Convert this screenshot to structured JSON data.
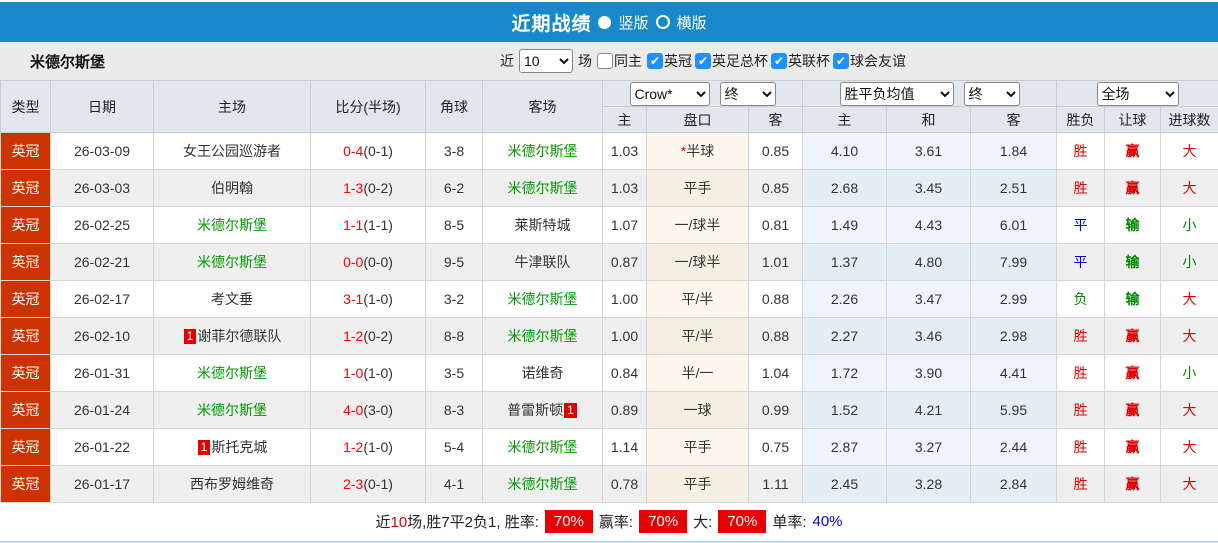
{
  "colors": {
    "titlebar_blue": "#1789cb",
    "league_cell_red": "#cc3300",
    "checkbox_blue": "#1e90ff",
    "row_alt_gray": "#efefef",
    "avg_col_blue": "#edf5fa",
    "handicap_col_cream": "#fcf8ee",
    "win_red": "#e00000",
    "lose_green": "#008800",
    "draw_blue": "#0000dd",
    "team_green": "#009900",
    "rate_badge_red": "#e80000"
  },
  "titlebar": {
    "title": "近期战绩",
    "vertical_label": "竖版",
    "horizontal_label": "横版"
  },
  "filter": {
    "team": "米德尔斯堡",
    "near_label": "近",
    "near_value": "10",
    "unit_label": "场",
    "same_home_label": "同主",
    "leagues": [
      "英冠",
      "英足总杯",
      "英联杯",
      "球会友谊"
    ]
  },
  "table": {
    "main_headers": [
      "类型",
      "日期",
      "主场",
      "比分(半场)",
      "角球",
      "客场"
    ],
    "selects": {
      "crow": "Crow*",
      "crow_final": "终",
      "avg": "胜平负均值",
      "avg_final": "终",
      "full": "全场"
    },
    "sub_headers": [
      "主",
      "盘口",
      "客",
      "主",
      "和",
      "客",
      "胜负",
      "让球",
      "进球数"
    ],
    "rows": [
      {
        "league": "英冠",
        "date": "26-03-09",
        "home": {
          "name": "女王公园巡游者",
          "green": false,
          "badge": "",
          "badge_after": false
        },
        "score": "0-4",
        "half": "(0-1)",
        "corners": "3-8",
        "away": {
          "name": "米德尔斯堡",
          "green": true,
          "badge": "",
          "badge_after": false
        },
        "odds": [
          "1.03",
          "半球",
          "0.85"
        ],
        "star": true,
        "avg": [
          "4.10",
          "3.61",
          "1.84"
        ],
        "result": [
          "胜",
          "red"
        ],
        "let": [
          "赢",
          "red"
        ],
        "goal": [
          "大",
          "red"
        ]
      },
      {
        "league": "英冠",
        "date": "26-03-03",
        "home": {
          "name": "伯明翰",
          "green": false,
          "badge": "",
          "badge_after": false
        },
        "score": "1-3",
        "half": "(0-2)",
        "corners": "6-2",
        "away": {
          "name": "米德尔斯堡",
          "green": true,
          "badge": "",
          "badge_after": false
        },
        "odds": [
          "1.03",
          "平手",
          "0.85"
        ],
        "star": false,
        "avg": [
          "2.68",
          "3.45",
          "2.51"
        ],
        "result": [
          "胜",
          "red"
        ],
        "let": [
          "赢",
          "red"
        ],
        "goal": [
          "大",
          "red"
        ]
      },
      {
        "league": "英冠",
        "date": "26-02-25",
        "home": {
          "name": "米德尔斯堡",
          "green": true,
          "badge": "",
          "badge_after": false
        },
        "score": "1-1",
        "half": "(1-1)",
        "corners": "8-5",
        "away": {
          "name": "莱斯特城",
          "green": false,
          "badge": "",
          "badge_after": false
        },
        "odds": [
          "1.07",
          "一/球半",
          "0.81"
        ],
        "star": false,
        "avg": [
          "1.49",
          "4.43",
          "6.01"
        ],
        "result": [
          "平",
          "blue"
        ],
        "let": [
          "输",
          "green"
        ],
        "goal": [
          "小",
          "green"
        ]
      },
      {
        "league": "英冠",
        "date": "26-02-21",
        "home": {
          "name": "米德尔斯堡",
          "green": true,
          "badge": "",
          "badge_after": false
        },
        "score": "0-0",
        "half": "(0-0)",
        "corners": "9-5",
        "away": {
          "name": "牛津联队",
          "green": false,
          "badge": "",
          "badge_after": false
        },
        "odds": [
          "0.87",
          "一/球半",
          "1.01"
        ],
        "star": false,
        "avg": [
          "1.37",
          "4.80",
          "7.99"
        ],
        "result": [
          "平",
          "blue"
        ],
        "let": [
          "输",
          "green"
        ],
        "goal": [
          "小",
          "green"
        ]
      },
      {
        "league": "英冠",
        "date": "26-02-17",
        "home": {
          "name": "考文垂",
          "green": false,
          "badge": "",
          "badge_after": false
        },
        "score": "3-1",
        "half": "(1-0)",
        "corners": "3-2",
        "away": {
          "name": "米德尔斯堡",
          "green": true,
          "badge": "",
          "badge_after": false
        },
        "odds": [
          "1.00",
          "平/半",
          "0.88"
        ],
        "star": false,
        "avg": [
          "2.26",
          "3.47",
          "2.99"
        ],
        "result": [
          "负",
          "green"
        ],
        "let": [
          "输",
          "green"
        ],
        "goal": [
          "大",
          "red"
        ]
      },
      {
        "league": "英冠",
        "date": "26-02-10",
        "home": {
          "name": "谢菲尔德联队",
          "green": false,
          "badge": "1",
          "badge_after": false
        },
        "score": "1-2",
        "half": "(0-2)",
        "corners": "8-8",
        "away": {
          "name": "米德尔斯堡",
          "green": true,
          "badge": "",
          "badge_after": false
        },
        "odds": [
          "1.00",
          "平/半",
          "0.88"
        ],
        "star": false,
        "avg": [
          "2.27",
          "3.46",
          "2.98"
        ],
        "result": [
          "胜",
          "red"
        ],
        "let": [
          "赢",
          "red"
        ],
        "goal": [
          "大",
          "red"
        ]
      },
      {
        "league": "英冠",
        "date": "26-01-31",
        "home": {
          "name": "米德尔斯堡",
          "green": true,
          "badge": "",
          "badge_after": false
        },
        "score": "1-0",
        "half": "(1-0)",
        "corners": "3-5",
        "away": {
          "name": "诺维奇",
          "green": false,
          "badge": "",
          "badge_after": false
        },
        "odds": [
          "0.84",
          "半/一",
          "1.04"
        ],
        "star": false,
        "avg": [
          "1.72",
          "3.90",
          "4.41"
        ],
        "result": [
          "胜",
          "red"
        ],
        "let": [
          "赢",
          "red"
        ],
        "goal": [
          "小",
          "green"
        ]
      },
      {
        "league": "英冠",
        "date": "26-01-24",
        "home": {
          "name": "米德尔斯堡",
          "green": true,
          "badge": "",
          "badge_after": false
        },
        "score": "4-0",
        "half": "(3-0)",
        "corners": "8-3",
        "away": {
          "name": "普雷斯顿",
          "green": false,
          "badge": "1",
          "badge_after": true
        },
        "odds": [
          "0.89",
          "一球",
          "0.99"
        ],
        "star": false,
        "avg": [
          "1.52",
          "4.21",
          "5.95"
        ],
        "result": [
          "胜",
          "red"
        ],
        "let": [
          "赢",
          "red"
        ],
        "goal": [
          "大",
          "red"
        ]
      },
      {
        "league": "英冠",
        "date": "26-01-22",
        "home": {
          "name": "斯托克城",
          "green": false,
          "badge": "1",
          "badge_after": false
        },
        "score": "1-2",
        "half": "(1-0)",
        "corners": "5-4",
        "away": {
          "name": "米德尔斯堡",
          "green": true,
          "badge": "",
          "badge_after": false
        },
        "odds": [
          "1.14",
          "平手",
          "0.75"
        ],
        "star": false,
        "avg": [
          "2.87",
          "3.27",
          "2.44"
        ],
        "result": [
          "胜",
          "red"
        ],
        "let": [
          "赢",
          "red"
        ],
        "goal": [
          "大",
          "red"
        ]
      },
      {
        "league": "英冠",
        "date": "26-01-17",
        "home": {
          "name": "西布罗姆维奇",
          "green": false,
          "badge": "",
          "badge_after": false
        },
        "score": "2-3",
        "half": "(0-1)",
        "corners": "4-1",
        "away": {
          "name": "米德尔斯堡",
          "green": true,
          "badge": "",
          "badge_after": false
        },
        "odds": [
          "0.78",
          "平手",
          "1.11"
        ],
        "star": false,
        "avg": [
          "2.45",
          "3.28",
          "2.84"
        ],
        "result": [
          "胜",
          "red"
        ],
        "let": [
          "赢",
          "red"
        ],
        "goal": [
          "大",
          "red"
        ]
      }
    ]
  },
  "summary": {
    "part1": "近",
    "count": "10",
    "part2": "场,胜7平2负1, 胜率:",
    "rate1": "70%",
    "label2": "赢率:",
    "rate2": "70%",
    "label3": "大:",
    "rate3": "70%",
    "label4": "单率:",
    "rate4": "40%"
  }
}
